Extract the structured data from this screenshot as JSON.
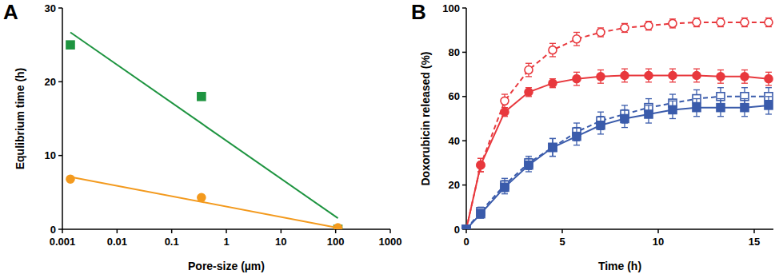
{
  "chart_data": [
    {
      "type": "scatter",
      "title": "A",
      "x_label": "Pore-size (µm)",
      "y_label": "Equlibrium time (h)",
      "log": "x",
      "xlim": [
        0.001,
        1000
      ],
      "xticks": [
        0.001,
        0.01,
        0.1,
        1,
        10,
        100,
        1000
      ],
      "ylim": [
        0,
        30
      ],
      "yticks": [
        0,
        10,
        20,
        30
      ],
      "series": [
        {
          "type": "scatter",
          "color": "#1e9440",
          "marker": "square",
          "line_style": "none",
          "x": [
            0.0014,
            0.35,
            110
          ],
          "values": [
            25,
            18,
            0
          ]
        },
        {
          "type": "scatter",
          "color": "#f39a1e",
          "marker": "circle",
          "line_style": "none",
          "x": [
            0.0014,
            0.35,
            110
          ],
          "values": [
            6.8,
            4.3,
            0.2
          ]
        },
        {
          "type": "line",
          "color": "#1e9440",
          "marker": "none",
          "line_style": "solid",
          "x": [
            0.0014,
            110
          ],
          "values": [
            26.7,
            1.5
          ]
        },
        {
          "type": "line",
          "color": "#f39a1e",
          "marker": "none",
          "line_style": "solid",
          "x": [
            0.0014,
            110
          ],
          "values": [
            7.1,
            0.2
          ]
        }
      ]
    },
    {
      "type": "line",
      "title": "B",
      "x_label": "Time (h)",
      "y_label": "Doxorubicin released (%)",
      "xlim": [
        0,
        16
      ],
      "xticks": [
        0,
        5,
        10,
        15
      ],
      "ylim": [
        0,
        100
      ],
      "yticks": [
        0,
        20,
        40,
        60,
        80,
        100
      ],
      "x": [
        0,
        0.75,
        2,
        3.25,
        4.5,
        5.75,
        7,
        8.25,
        9.5,
        10.75,
        12,
        13.25,
        14.5,
        15.75
      ],
      "series": [
        {
          "color": "#e8383d",
          "marker": "circle-open",
          "line_style": "dashed",
          "values": [
            0,
            29,
            58,
            72,
            81,
            86,
            89,
            91,
            92,
            93,
            93.5,
            93.5,
            93.5,
            93.5
          ],
          "errors": [
            0,
            3,
            3,
            3,
            3,
            3,
            2,
            2,
            2,
            2,
            2,
            2,
            2,
            2
          ]
        },
        {
          "color": "#e8383d",
          "marker": "circle",
          "line_style": "solid",
          "values": [
            0,
            29,
            53,
            62,
            66,
            68,
            69,
            69.5,
            69.5,
            69.5,
            69.5,
            69,
            69,
            68
          ],
          "errors": [
            0,
            3,
            2,
            2,
            2,
            3,
            3,
            3,
            3,
            3,
            3,
            3,
            3,
            3
          ]
        },
        {
          "color": "#3a5bab",
          "marker": "square-open",
          "line_style": "dashed",
          "values": [
            0,
            8,
            20,
            30,
            37,
            44,
            49,
            52,
            55,
            57,
            59,
            60,
            60,
            60
          ],
          "errors": [
            0,
            2,
            3,
            3,
            4,
            4,
            4,
            4,
            4,
            4,
            4,
            4,
            4,
            4
          ]
        },
        {
          "color": "#3a5bab",
          "marker": "square",
          "line_style": "solid",
          "values": [
            0,
            7,
            19,
            29,
            37,
            42,
            47,
            50,
            52,
            54,
            55,
            55,
            55,
            56
          ],
          "errors": [
            0,
            2,
            3,
            3,
            4,
            4,
            4,
            4,
            4,
            4,
            4,
            4,
            4,
            4
          ]
        }
      ]
    }
  ]
}
